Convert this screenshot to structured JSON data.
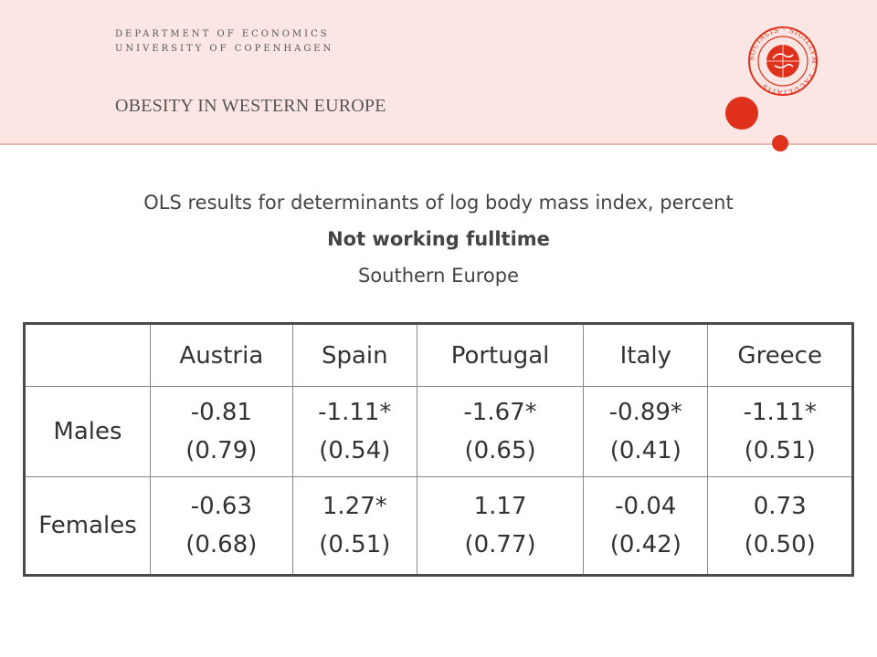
{
  "header": {
    "department_line1": "DEPARTMENT OF ECONOMICS",
    "department_line2": "UNIVERSITY OF COPENHAGEN",
    "title": "OBESITY IN WESTERN EUROPE",
    "seal_text": "SOCIALIS · SIGILLVM · FACULTATIS",
    "accent_color": "#e0311c",
    "background_color": "#fbe6e3"
  },
  "subtitle": {
    "line1": "OLS results for determinants of log body mass index, percent",
    "line2": "Not working fulltime",
    "line3": "Southern Europe"
  },
  "table": {
    "columns": [
      "",
      "Austria",
      "Spain",
      "Portugal",
      "Italy",
      "Greece"
    ],
    "rows": [
      {
        "label": "Males",
        "cells": [
          {
            "coef": "-0.81",
            "se": "(0.79)"
          },
          {
            "coef": "-1.11*",
            "se": "(0.54)"
          },
          {
            "coef": "-1.67*",
            "se": "(0.65)"
          },
          {
            "coef": "-0.89*",
            "se": "(0.41)"
          },
          {
            "coef": "-1.11*",
            "se": "(0.51)"
          }
        ]
      },
      {
        "label": "Females",
        "cells": [
          {
            "coef": "-0.63",
            "se": "(0.68)"
          },
          {
            "coef": "1.27*",
            "se": "(0.51)"
          },
          {
            "coef": "1.17",
            "se": "(0.77)"
          },
          {
            "coef": "-0.04",
            "se": "(0.42)"
          },
          {
            "coef": "0.73",
            "se": "(0.50)"
          }
        ]
      }
    ]
  }
}
